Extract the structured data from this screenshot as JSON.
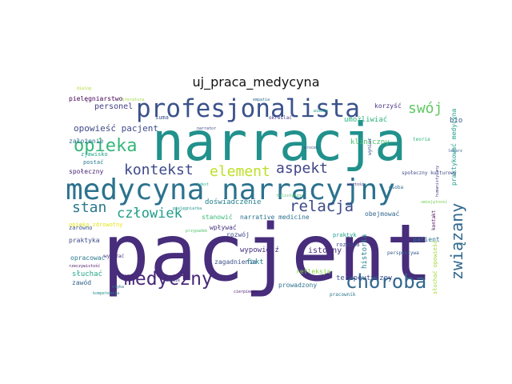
{
  "title": "uj_praca_medycyna",
  "words": [
    {
      "text": "pacjent",
      "color": "#472d7b"
    },
    {
      "text": "narracja",
      "color": "#21918c"
    },
    {
      "text": "medycyna narracyjny",
      "color": "#2c728e"
    },
    {
      "text": "profesjonalista",
      "color": "#3b528b"
    },
    {
      "text": "choroba",
      "color": "#31688e"
    },
    {
      "text": "medyczny",
      "color": "#482878"
    },
    {
      "text": "opieka",
      "color": "#35b779"
    },
    {
      "text": "związany",
      "color": "#31688e"
    },
    {
      "text": "kontekst",
      "color": "#3e4989"
    },
    {
      "text": "element",
      "color": "#bddf26"
    },
    {
      "text": "aspekt",
      "color": "#414487"
    },
    {
      "text": "relacja",
      "color": "#3e4a89"
    },
    {
      "text": "człowiek",
      "color": "#1f9e89"
    },
    {
      "text": "stan",
      "color": "#2a788e"
    },
    {
      "text": "swój",
      "color": "#5ec962"
    },
    {
      "text": "opowieść pacjent",
      "color": "#3e4a89"
    },
    {
      "text": "personel",
      "color": "#424086"
    },
    {
      "text": "pielęgniarstwo",
      "color": "#440154"
    },
    {
      "text": "założenie",
      "color": "#2d708e"
    },
    {
      "text": "zjawisko",
      "color": "#1fa088"
    },
    {
      "text": "postać",
      "color": "#297a8e"
    },
    {
      "text": "społeczny",
      "color": "#482475"
    },
    {
      "text": "doświadczenie",
      "color": "#26818e"
    },
    {
      "text": "umożliwiać",
      "color": "#2db27d"
    },
    {
      "text": "kliniczny",
      "color": "#4ac16d"
    },
    {
      "text": "korzyść",
      "color": "#46327e"
    },
    {
      "text": "bio",
      "color": "#38598c"
    },
    {
      "text": "praktykować medycyna",
      "color": "#1e9c89"
    },
    {
      "text": "praktyka",
      "color": "#3e4989"
    },
    {
      "text": "zarówno",
      "color": "#3b528b"
    },
    {
      "text": "opieka zdrowotny",
      "color": "#e5e419"
    },
    {
      "text": "opracować",
      "color": "#2a788e"
    },
    {
      "text": "słuchać",
      "color": "#21a585"
    },
    {
      "text": "zawód",
      "color": "#33638d"
    },
    {
      "text": "wpływać",
      "color": "#46337f"
    },
    {
      "text": "stanowić",
      "color": "#38b977"
    },
    {
      "text": "narrative medicine",
      "color": "#2c728e"
    },
    {
      "text": "rozwój",
      "color": "#3e4989"
    },
    {
      "text": "zagadnienia",
      "color": "#3b528b"
    },
    {
      "text": "wypowiedź",
      "color": "#46327e"
    },
    {
      "text": "fakt",
      "color": "#25848e"
    },
    {
      "text": "refleksja",
      "color": "#86d549"
    },
    {
      "text": "istotny",
      "color": "#472a7a"
    },
    {
      "text": "historia",
      "color": "#26828e"
    },
    {
      "text": "terapeutyczny",
      "color": "#3b528b"
    },
    {
      "text": "prowadzony",
      "color": "#2d708e"
    },
    {
      "text": "obejmować",
      "color": "#31688e"
    },
    {
      "text": "patient",
      "color": "#2c738e"
    },
    {
      "text": "słuchać opowieść",
      "color": "#a2da37"
    },
    {
      "text": "praktyk",
      "color": "#1fa187"
    },
    {
      "text": "rozmowa",
      "color": "#3f4788"
    },
    {
      "text": "suma",
      "color": "#3b528b"
    },
    {
      "text": "społeczny kulturowy",
      "color": "#3e4a89"
    },
    {
      "text": "określać",
      "color": "#443a83"
    },
    {
      "text": "literatura",
      "color": "#9dd93b"
    },
    {
      "text": "narrator",
      "color": "#3f4889"
    },
    {
      "text": "lekarz",
      "color": "#35608d"
    },
    {
      "text": "osoba",
      "color": "#2e6e8e"
    },
    {
      "text": "wyrażać",
      "color": "#46307e"
    },
    {
      "text": "rzeczywistość",
      "color": "#471063"
    },
    {
      "text": "kompetencja",
      "color": "#21908d"
    },
    {
      "text": "pracownik",
      "color": "#2a778e"
    },
    {
      "text": "przypadek",
      "color": "#50c46a"
    },
    {
      "text": "wymiar",
      "color": "#3d4e8a"
    },
    {
      "text": "umiejętność",
      "color": "#75d054"
    },
    {
      "text": "cierpienie",
      "color": "#481b6d"
    },
    {
      "text": "zdrowie",
      "color": "#453882"
    },
    {
      "text": "wiedza",
      "color": "#1f988b"
    },
    {
      "text": "teoria",
      "color": "#32b67a"
    },
    {
      "text": "empatia",
      "color": "#2f6b8e"
    },
    {
      "text": "kontakt",
      "color": "#440154"
    },
    {
      "text": "proces",
      "color": "#3a548c"
    },
    {
      "text": "holistyczny",
      "color": "#48c16e"
    },
    {
      "text": "tekst",
      "color": "#22a884"
    },
    {
      "text": "perspektywa",
      "color": "#37598c"
    },
    {
      "text": "wartość",
      "color": "#46327e"
    },
    {
      "text": "dialog",
      "color": "#addc30"
    },
    {
      "text": "etyka",
      "color": "#2d718e"
    },
    {
      "text": "humanistyczny",
      "color": "#424186"
    },
    {
      "text": "pielęgniarka",
      "color": "#1f948c"
    }
  ]
}
